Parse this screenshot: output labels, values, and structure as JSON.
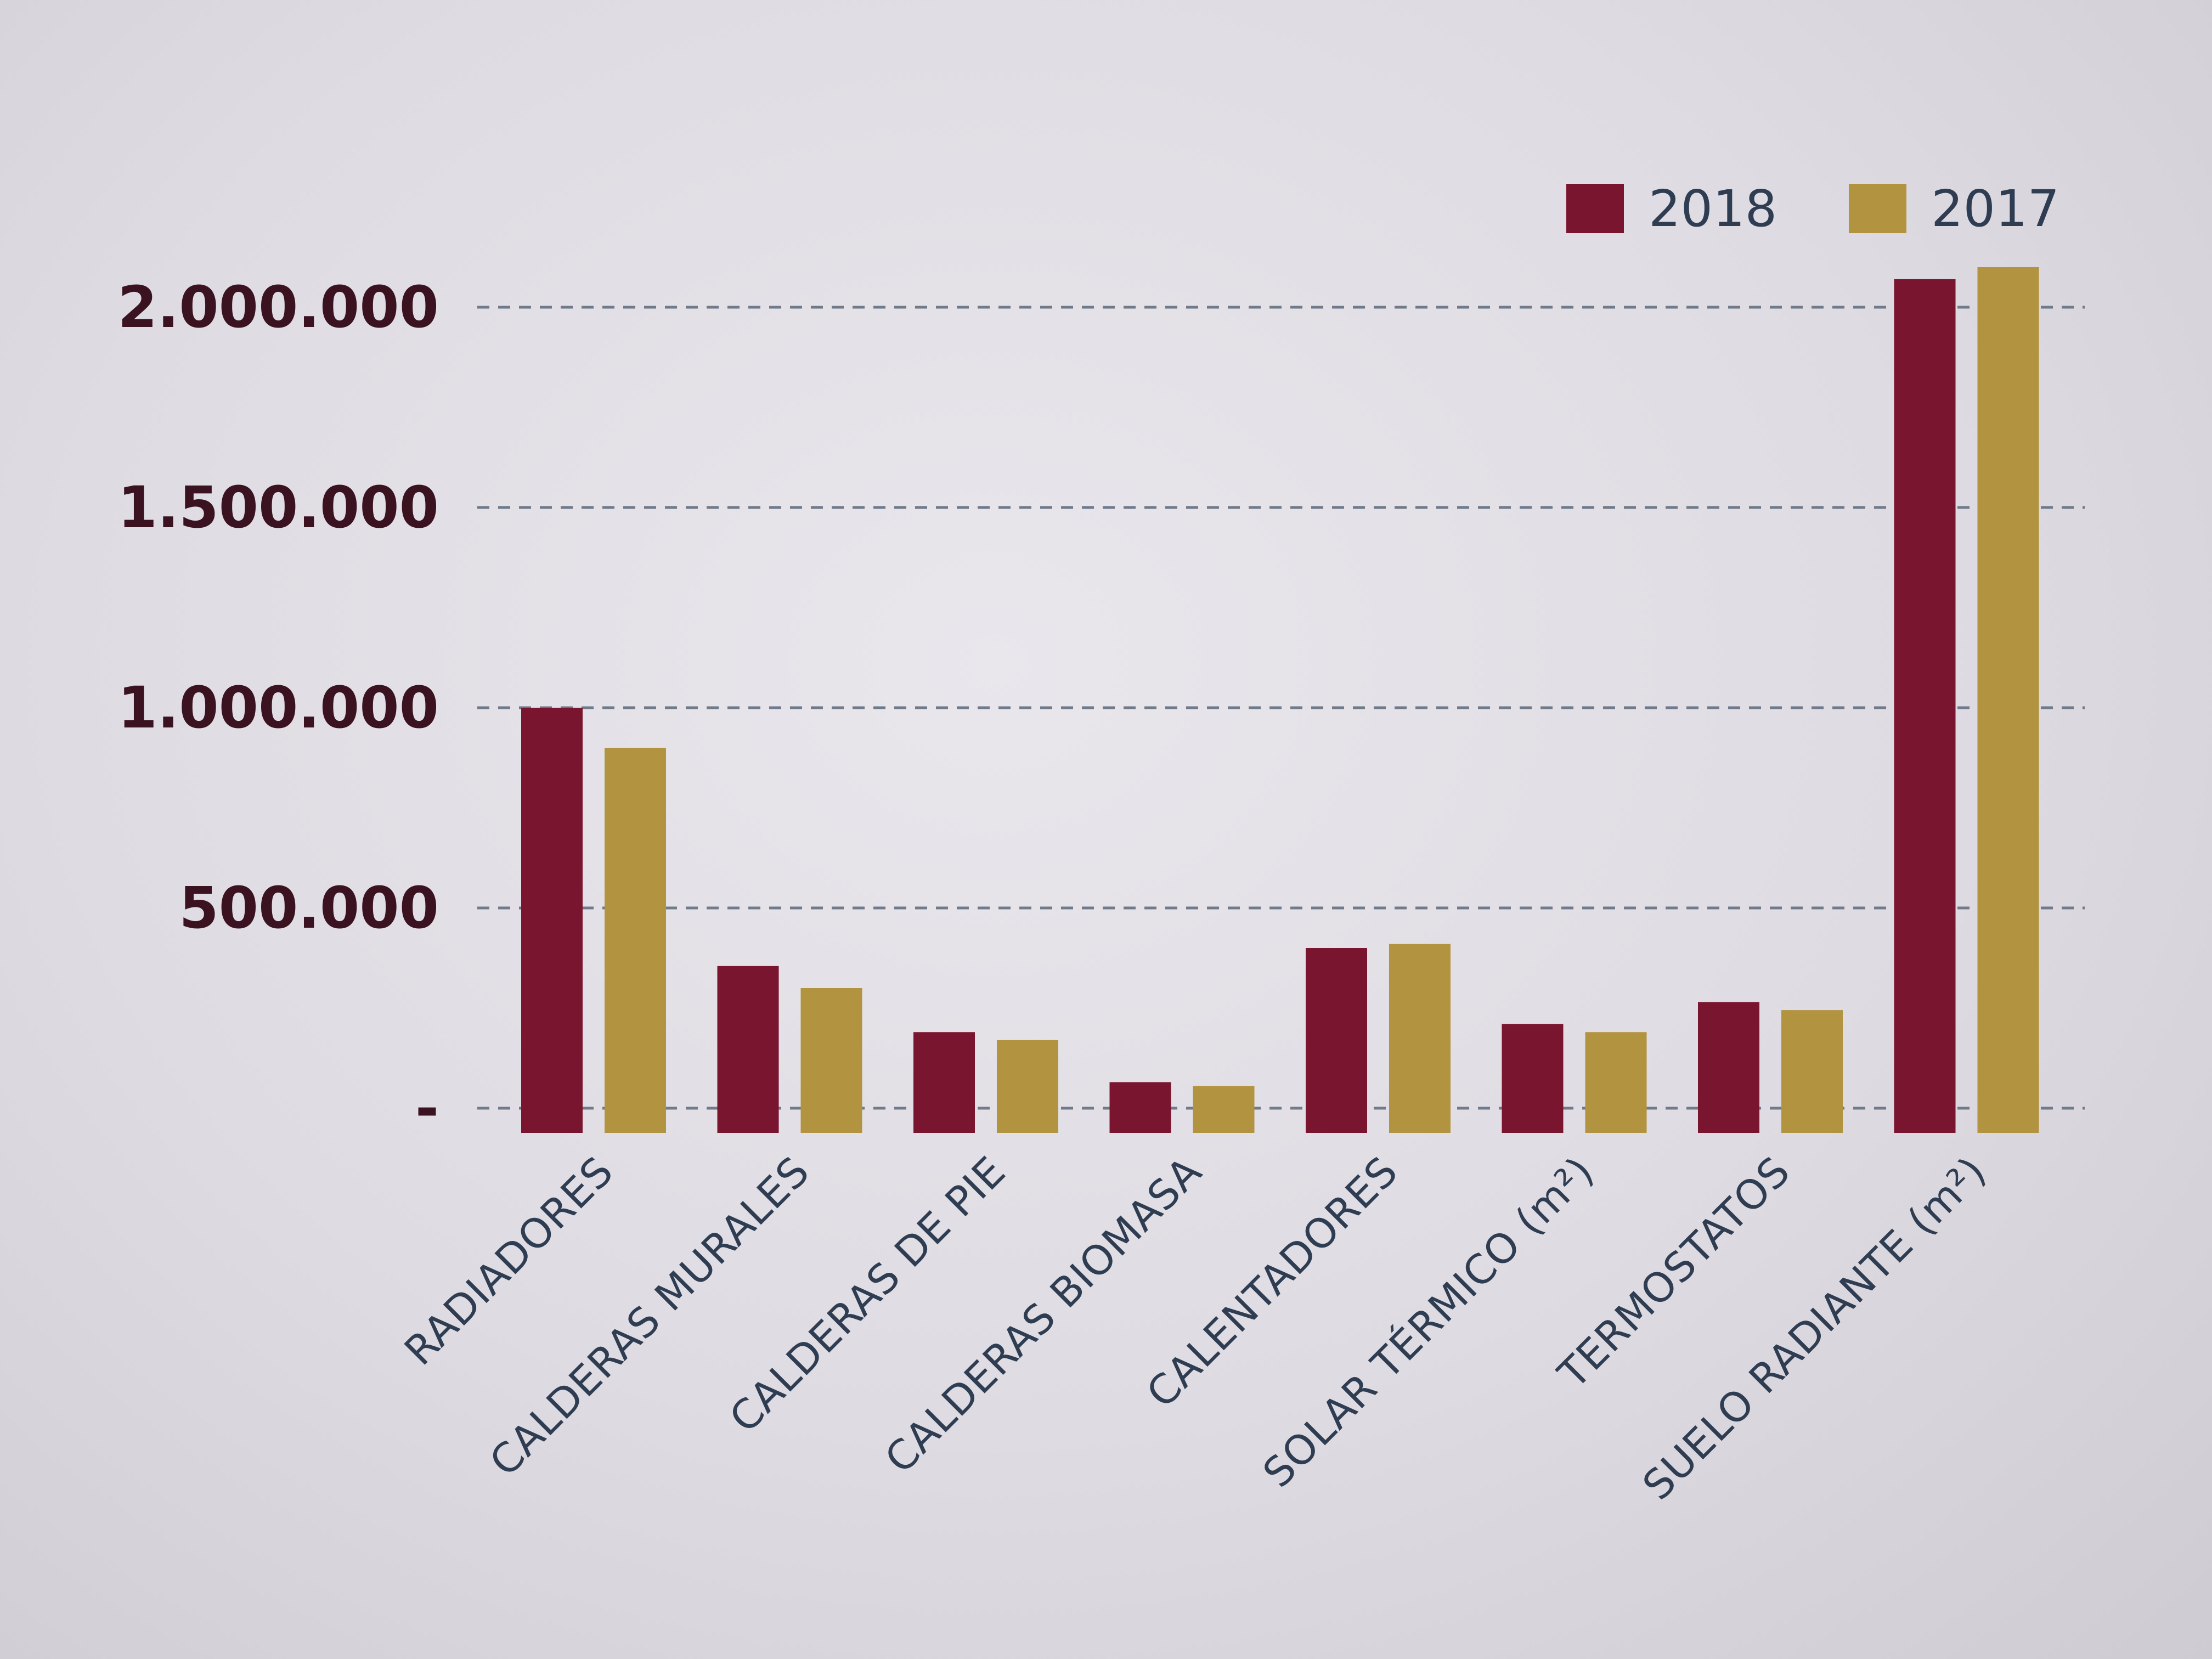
{
  "chart_data": {
    "type": "bar",
    "categories": [
      "RADIADORES",
      "CALDERAS MURALES",
      "CALDERAS DE PIE",
      "CALDERAS BIOMASA",
      "CALENTADORES",
      "SOLAR TÉRMICO (m²)",
      "TERMOSTATOS",
      "SUELO RADIANTE (m²)"
    ],
    "series": [
      {
        "name": "2018",
        "color": "#7a1530",
        "values": [
          1000000,
          355000,
          190000,
          65000,
          400000,
          210000,
          265000,
          2070000
        ]
      },
      {
        "name": "2017",
        "color": "#b2933f",
        "values": [
          900000,
          300000,
          170000,
          55000,
          410000,
          190000,
          245000,
          2100000
        ]
      }
    ],
    "y_ticks": [
      {
        "value": 0,
        "label": "-"
      },
      {
        "value": 500000,
        "label": "500.000"
      },
      {
        "value": 1000000,
        "label": "1.000.000"
      },
      {
        "value": 1500000,
        "label": "1.500.000"
      },
      {
        "value": 2000000,
        "label": "2.000.000"
      }
    ],
    "ylim": [
      0,
      2000000
    ],
    "grid": true,
    "legend_position": "top-right"
  }
}
